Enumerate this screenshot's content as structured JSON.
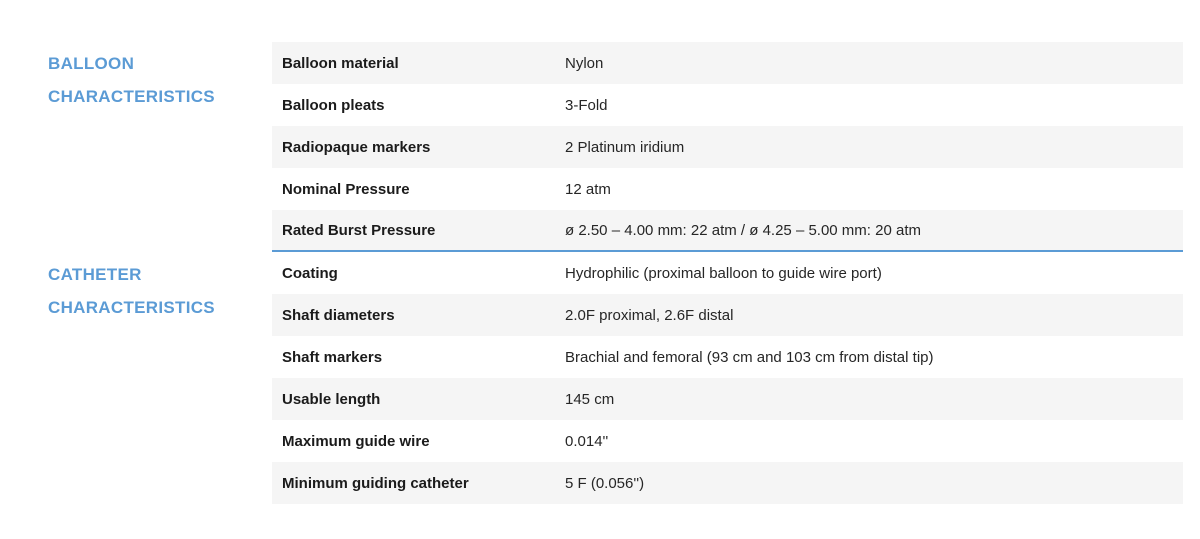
{
  "accent_color": "#5b9bd5",
  "row_stripe_color": "#f5f5f5",
  "sections": [
    {
      "title_lines": [
        "BALLOON",
        "CHARACTERISTICS"
      ],
      "rows": [
        {
          "label": "Balloon material",
          "value": "Nylon"
        },
        {
          "label": "Balloon pleats",
          "value": "3-Fold"
        },
        {
          "label": "Radiopaque markers",
          "value": "2 Platinum iridium"
        },
        {
          "label": "Nominal Pressure",
          "value": "12 atm"
        },
        {
          "label": "Rated Burst Pressure",
          "value": "ø 2.50 – 4.00 mm: 22 atm / ø 4.25 – 5.00 mm: 20 atm"
        }
      ]
    },
    {
      "title_lines": [
        "CATHETER",
        "CHARACTERISTICS"
      ],
      "rows": [
        {
          "label": "Coating",
          "value": "Hydrophilic (proximal balloon to guide wire port)"
        },
        {
          "label": "Shaft diameters",
          "value": "2.0F proximal, 2.6F distal"
        },
        {
          "label": "Shaft markers",
          "value": "Brachial and femoral (93 cm and 103 cm from distal tip)"
        },
        {
          "label": "Usable length",
          "value": "145 cm"
        },
        {
          "label": "Maximum guide wire",
          "value": "0.014''"
        },
        {
          "label": "Minimum guiding catheter",
          "value": "5 F (0.056'')"
        }
      ]
    }
  ]
}
